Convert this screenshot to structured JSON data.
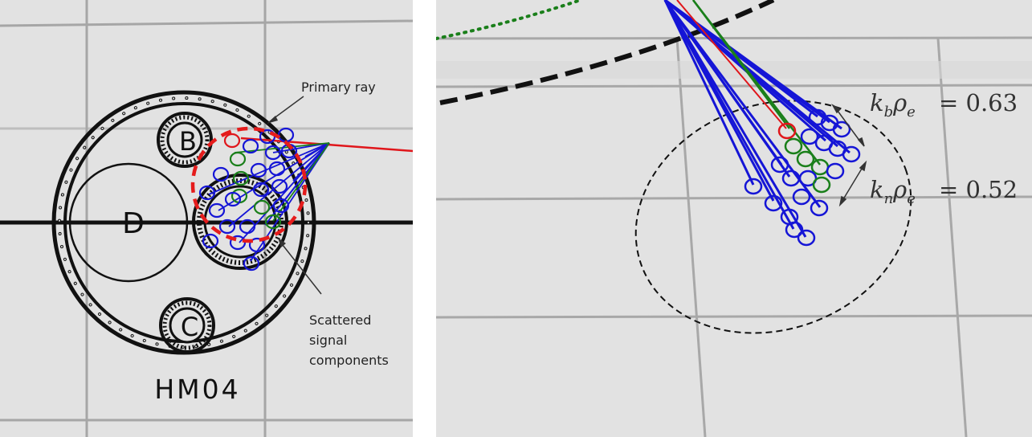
{
  "left_panel": {
    "primary_label": "Primary ray",
    "scatter_label_lines": [
      "Scattered",
      "signal",
      "components"
    ],
    "hm_label": "HM04",
    "circle_labels": {
      "b": "B",
      "c": "C",
      "d": "D"
    }
  },
  "right_panel": {
    "kb_eq": "= 0.63",
    "kn_eq": "= 0.52"
  },
  "colors": {
    "background": "#e2e2e2",
    "grid": "#a8a8a8",
    "primary_ray": "#e0161b",
    "scatter": "#1515d6",
    "green": "#1a7f1a",
    "red_dashed_circle": "#e51c1c"
  }
}
